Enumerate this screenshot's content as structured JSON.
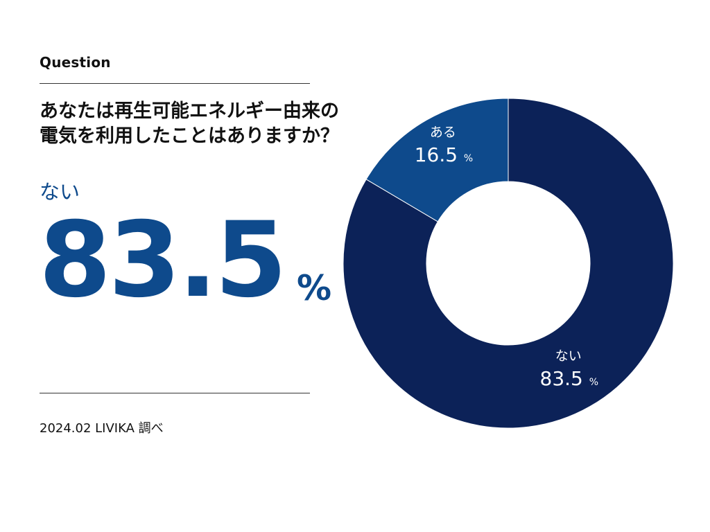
{
  "question": {
    "label": "Question",
    "line1": "あなたは再生可能エネルギー由来の",
    "line2": "電気を利用したことはありますか？"
  },
  "highlight": {
    "label": "ない",
    "value": "83.5",
    "unit": "%"
  },
  "source": "2024.02 LIVIKA 調べ",
  "colors": {
    "accent": "#0e4a8c",
    "major_slice": "#0c2258",
    "minor_slice": "#0e4a8c",
    "slice_border": "#ffffff"
  },
  "chart_data": {
    "type": "pie",
    "donut": true,
    "start": "12 o'clock, clockwise",
    "unit": "%",
    "slices": [
      {
        "label": "ない",
        "value": 83.5,
        "display": "83.5",
        "color": "#0c2258"
      },
      {
        "label": "ある",
        "value": 16.5,
        "display": "16.5",
        "color": "#0e4a8c"
      }
    ]
  }
}
